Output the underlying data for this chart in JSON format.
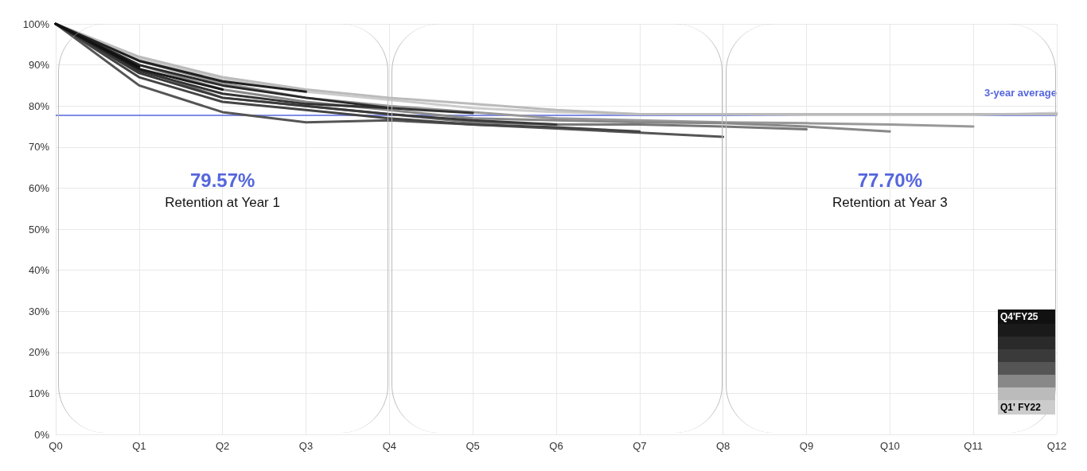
{
  "chart_data": {
    "type": "line",
    "categories": [
      "Q0",
      "Q1",
      "Q2",
      "Q3",
      "Q4",
      "Q5",
      "Q6",
      "Q7",
      "Q8",
      "Q9",
      "Q10",
      "Q11",
      "Q12"
    ],
    "series": [
      {
        "color": "#111111",
        "values": [
          100,
          89.5,
          null,
          null,
          null,
          null,
          null,
          null,
          null,
          null,
          null,
          null,
          null
        ]
      },
      {
        "color": "#1a1a1a",
        "values": [
          100,
          89,
          84,
          null,
          null,
          null,
          null,
          null,
          null,
          null,
          null,
          null,
          null
        ]
      },
      {
        "color": "#222222",
        "values": [
          100,
          91,
          86,
          83.5,
          null,
          null,
          null,
          null,
          null,
          null,
          null,
          null,
          null
        ]
      },
      {
        "color": "#2a2a2a",
        "values": [
          100,
          90,
          85,
          82,
          79.5,
          null,
          null,
          null,
          null,
          null,
          null,
          null,
          null
        ]
      },
      {
        "color": "#333333",
        "values": [
          100,
          88.5,
          83,
          80.5,
          79.5,
          78.3,
          null,
          null,
          null,
          null,
          null,
          null,
          null
        ]
      },
      {
        "color": "#3a3a3a",
        "values": [
          100,
          88,
          82,
          80,
          78,
          76.5,
          75.5,
          null,
          null,
          null,
          null,
          null,
          null
        ]
      },
      {
        "color": "#444444",
        "values": [
          100,
          87,
          81,
          79,
          77,
          75.5,
          74.8,
          73.8,
          null,
          null,
          null,
          null,
          null
        ]
      },
      {
        "color": "#555555",
        "values": [
          100,
          85,
          78.5,
          76,
          76.5,
          75.5,
          74.5,
          73.5,
          72.5,
          null,
          null,
          null,
          null
        ]
      },
      {
        "color": "#777777",
        "values": [
          100,
          89,
          82,
          80,
          78,
          76,
          75.5,
          75.5,
          75,
          74.3,
          null,
          null,
          null
        ]
      },
      {
        "color": "#888888",
        "values": [
          100,
          90,
          84,
          81,
          79,
          77,
          76.5,
          76,
          75.8,
          75,
          73.8,
          null,
          null
        ]
      },
      {
        "color": "#999999",
        "values": [
          100,
          91,
          85.5,
          82,
          80,
          78.5,
          77,
          76.5,
          76,
          75.8,
          75.5,
          75,
          null
        ]
      },
      {
        "color": "#bbbbbb",
        "values": [
          100,
          92,
          87,
          84,
          82,
          80.5,
          79,
          78,
          78,
          78,
          78,
          78,
          78
        ]
      },
      {
        "color": "#cccccc",
        "values": [
          100,
          91.5,
          86.5,
          83.5,
          81.5,
          79.5,
          78.5,
          78,
          78,
          77.8,
          77.8,
          77.8,
          78.3
        ]
      }
    ],
    "ylim": [
      0,
      100
    ],
    "yticks": [
      {
        "value": 0,
        "label": "0%"
      },
      {
        "value": 10,
        "label": "10%"
      },
      {
        "value": 20,
        "label": "20%"
      },
      {
        "value": 30,
        "label": "30%"
      },
      {
        "value": 40,
        "label": "40%"
      },
      {
        "value": 50,
        "label": "50%"
      },
      {
        "value": 60,
        "label": "60%"
      },
      {
        "value": 70,
        "label": "70%"
      },
      {
        "value": 80,
        "label": "80%"
      },
      {
        "value": 90,
        "label": "90%"
      },
      {
        "value": 100,
        "label": "100%"
      }
    ],
    "ref_lines": [
      {
        "axis": "y",
        "value": 77.7,
        "label": "3-year average",
        "color": "#5566dd"
      }
    ],
    "annotations": [
      "79.57%",
      "Retention at Year 1",
      "77.70%",
      "Retention at Year 3",
      "Q4'FY25",
      "Q1' FY22"
    ],
    "grid": true,
    "marker": "none",
    "line_style": "solid"
  }
}
